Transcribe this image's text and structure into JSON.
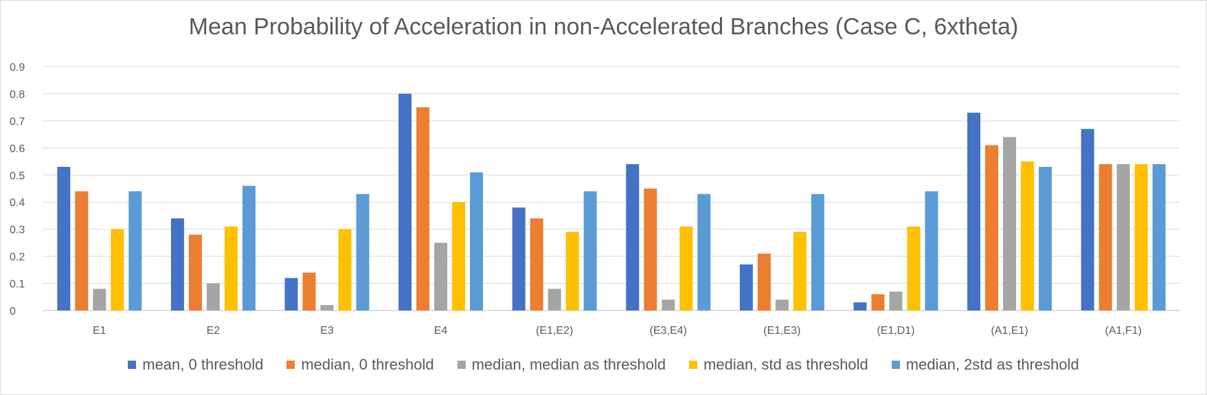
{
  "chart_data": {
    "type": "bar",
    "title": "Mean Probability of Acceleration in non-Accelerated Branches (Case C, 6xtheta)",
    "xlabel": "",
    "ylabel": "",
    "ylim": [
      0,
      0.9
    ],
    "yticks": [
      "0",
      "0.1",
      "0.2",
      "0.3",
      "0.4",
      "0.5",
      "0.6",
      "0.7",
      "0.8",
      "0.9"
    ],
    "grid": true,
    "legend_position": "bottom",
    "categories": [
      "E1",
      "E2",
      "E3",
      "E4",
      "(E1,E2)",
      "(E3,E4)",
      "(E1,E3)",
      "(E1,D1)",
      "(A1,E1)",
      "(A1,F1)"
    ],
    "series": [
      {
        "name": "mean, 0 threshold",
        "color": "#4472C4",
        "values": [
          0.53,
          0.34,
          0.12,
          0.8,
          0.38,
          0.54,
          0.17,
          0.03,
          0.73,
          0.67
        ]
      },
      {
        "name": "median, 0 threshold",
        "color": "#ED7D31",
        "values": [
          0.44,
          0.28,
          0.14,
          0.75,
          0.34,
          0.45,
          0.21,
          0.06,
          0.61,
          0.54
        ]
      },
      {
        "name": "median, median as threshold",
        "color": "#A5A5A5",
        "values": [
          0.08,
          0.1,
          0.02,
          0.25,
          0.08,
          0.04,
          0.04,
          0.07,
          0.64,
          0.54
        ]
      },
      {
        "name": "median, std as threshold",
        "color": "#FFC000",
        "values": [
          0.3,
          0.31,
          0.3,
          0.4,
          0.29,
          0.31,
          0.29,
          0.31,
          0.55,
          0.54
        ]
      },
      {
        "name": "median, 2std as threshold",
        "color": "#5B9BD5",
        "values": [
          0.44,
          0.46,
          0.43,
          0.51,
          0.44,
          0.43,
          0.43,
          0.44,
          0.53,
          0.54
        ]
      }
    ]
  }
}
